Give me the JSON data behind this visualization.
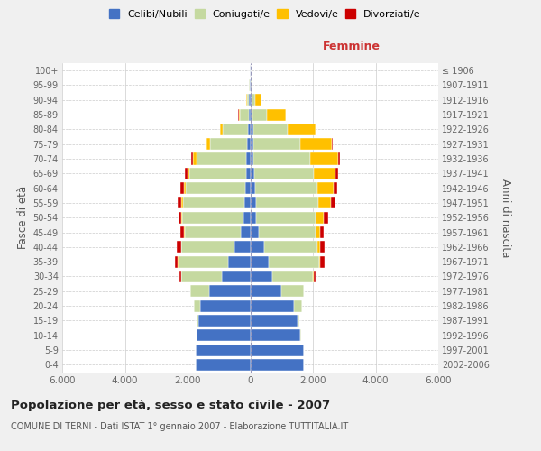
{
  "age_groups": [
    "0-4",
    "5-9",
    "10-14",
    "15-19",
    "20-24",
    "25-29",
    "30-34",
    "35-39",
    "40-44",
    "45-49",
    "50-54",
    "55-59",
    "60-64",
    "65-69",
    "70-74",
    "75-79",
    "80-84",
    "85-89",
    "90-94",
    "95-99",
    "100+"
  ],
  "birth_years": [
    "2002-2006",
    "1997-2001",
    "1992-1996",
    "1987-1991",
    "1982-1986",
    "1977-1981",
    "1972-1976",
    "1967-1971",
    "1962-1966",
    "1957-1961",
    "1952-1956",
    "1947-1951",
    "1942-1946",
    "1937-1941",
    "1932-1936",
    "1927-1931",
    "1922-1926",
    "1917-1921",
    "1912-1916",
    "1907-1911",
    "≤ 1906"
  ],
  "male": {
    "celibe": [
      1750,
      1750,
      1700,
      1650,
      1600,
      1300,
      900,
      700,
      500,
      300,
      220,
      200,
      160,
      130,
      120,
      90,
      80,
      50,
      30,
      10,
      5
    ],
    "coniugato": [
      5,
      5,
      10,
      50,
      200,
      600,
      1300,
      1600,
      1700,
      1800,
      1950,
      1950,
      1900,
      1800,
      1600,
      1200,
      800,
      280,
      80,
      20,
      5
    ],
    "vedovo": [
      0,
      0,
      0,
      0,
      0,
      0,
      5,
      5,
      10,
      20,
      30,
      50,
      60,
      80,
      120,
      100,
      80,
      40,
      20,
      5,
      0
    ],
    "divorziato": [
      0,
      0,
      0,
      0,
      5,
      20,
      50,
      100,
      130,
      100,
      100,
      130,
      100,
      80,
      50,
      15,
      10,
      5,
      5,
      0,
      0
    ]
  },
  "female": {
    "nubile": [
      1700,
      1700,
      1600,
      1500,
      1400,
      1000,
      700,
      600,
      450,
      280,
      200,
      180,
      150,
      120,
      100,
      100,
      100,
      80,
      50,
      15,
      5
    ],
    "coniugata": [
      5,
      5,
      15,
      80,
      250,
      700,
      1300,
      1600,
      1700,
      1800,
      1900,
      2000,
      2000,
      1900,
      1800,
      1500,
      1100,
      450,
      100,
      20,
      5
    ],
    "vedova": [
      0,
      0,
      0,
      0,
      5,
      5,
      20,
      40,
      80,
      150,
      250,
      400,
      500,
      700,
      900,
      1000,
      900,
      600,
      200,
      40,
      5
    ],
    "divorziata": [
      0,
      0,
      0,
      0,
      10,
      20,
      60,
      130,
      150,
      120,
      130,
      150,
      120,
      90,
      60,
      20,
      15,
      10,
      5,
      0,
      0
    ]
  },
  "colors": {
    "celibe": "#4472c4",
    "coniugato": "#c5d9a0",
    "vedovo": "#ffc000",
    "divorziato": "#cc0000"
  },
  "legend_labels": [
    "Celibi/Nubili",
    "Coniugati/e",
    "Vedovi/e",
    "Divorziati/e"
  ],
  "title": "Popolazione per età, sesso e stato civile - 2007",
  "subtitle": "COMUNE DI TERNI - Dati ISTAT 1° gennaio 2007 - Elaborazione TUTTITALIA.IT",
  "ylabel_left": "Fasce di età",
  "ylabel_right": "Anni di nascita",
  "xlabel_femmine": "Femmine",
  "xlim": 6000,
  "xticks": [
    -6000,
    -4000,
    -2000,
    0,
    2000,
    4000,
    6000
  ],
  "background_color": "#f0f0f0",
  "plot_bg": "#ffffff",
  "grid_color": "#cccccc",
  "bar_height": 0.8
}
